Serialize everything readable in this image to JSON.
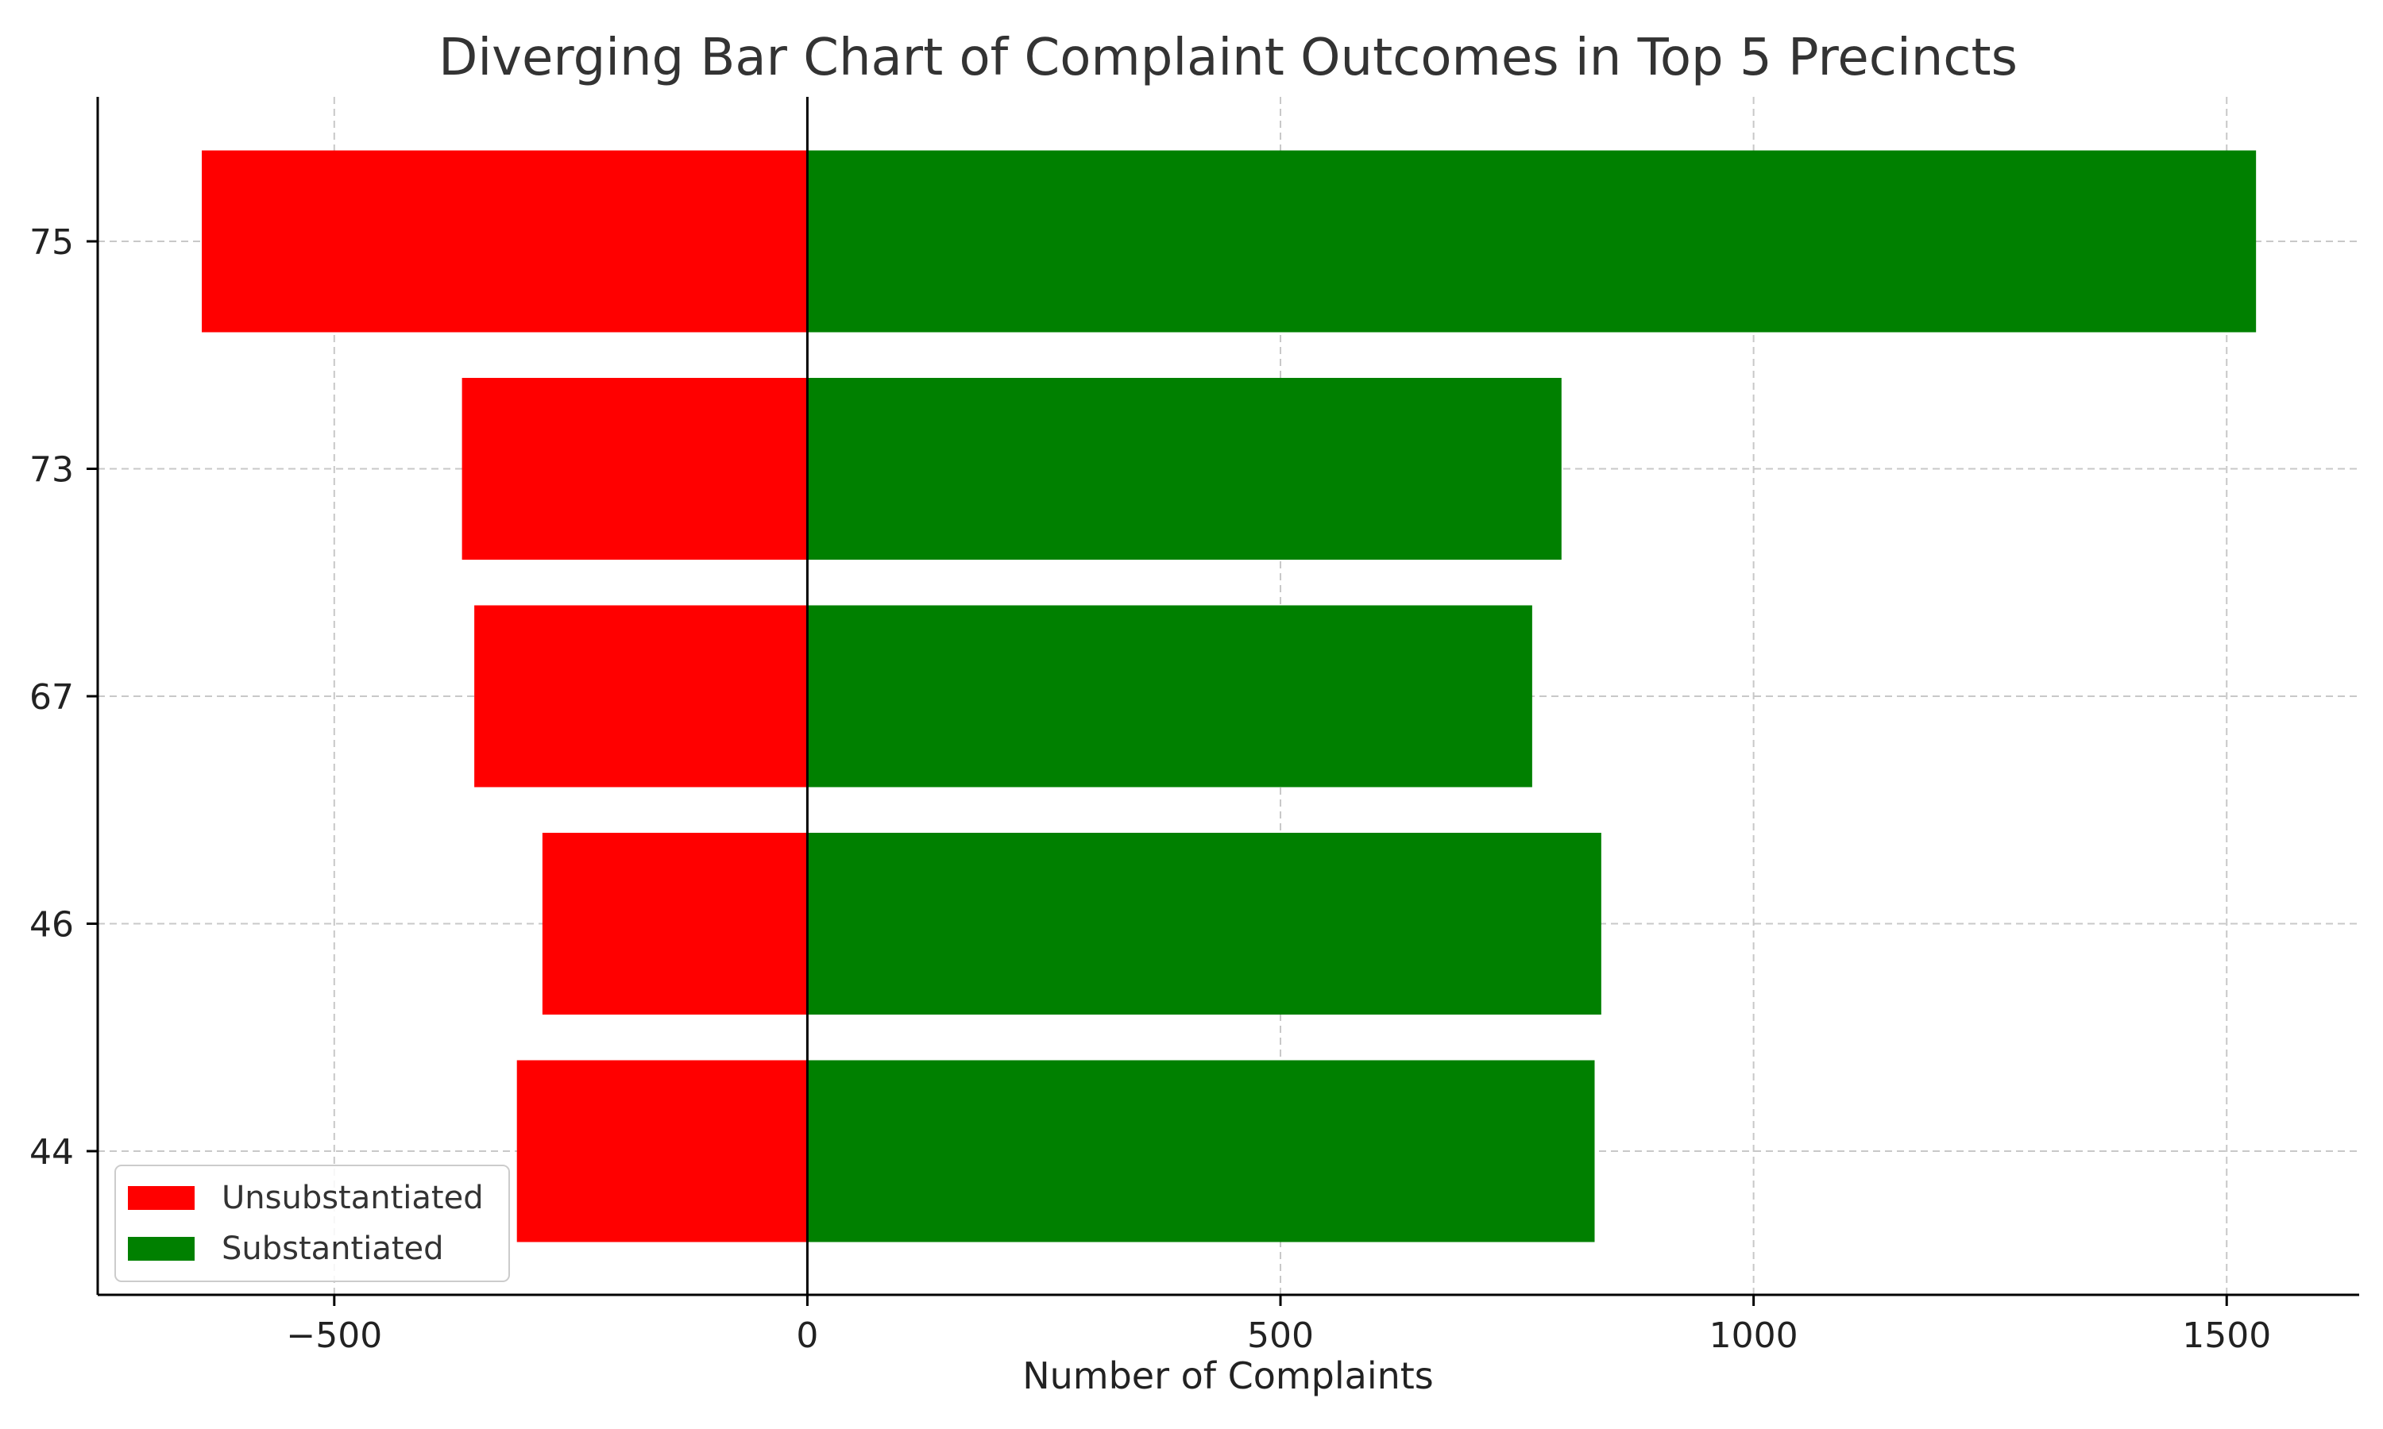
{
  "chart_data": {
    "type": "bar",
    "orientation": "horizontal",
    "title": "Diverging Bar Chart of Complaint Outcomes in Top 5 Precincts",
    "xlabel": "Number of Complaints",
    "ylabel": "",
    "categories": [
      "75",
      "73",
      "67",
      "46",
      "44"
    ],
    "series": [
      {
        "name": "Unsubstantiated",
        "color": "#ff0000",
        "values": [
          -640,
          -365,
          -352,
          -280,
          -307
        ]
      },
      {
        "name": "Substantiated",
        "color": "#008000",
        "values": [
          1531,
          797,
          766,
          839,
          832
        ]
      }
    ],
    "xlim": [
      -750,
      1640
    ],
    "xticks": [
      -500,
      0,
      500,
      1000,
      1500
    ],
    "xtick_labels": [
      "−500",
      "0",
      "500",
      "1000",
      "1500"
    ],
    "grid": true,
    "legend_position": "lower-left"
  }
}
